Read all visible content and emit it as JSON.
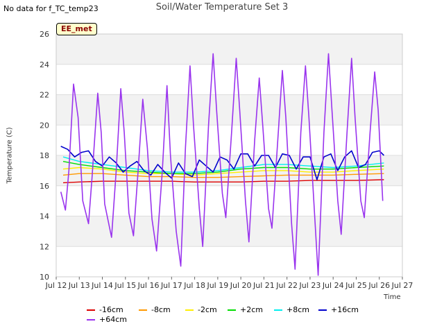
{
  "header": {
    "no_data_text": "No data for f_TC_temp23",
    "badge_text": "EE_met"
  },
  "chart_data": {
    "type": "line",
    "title": "Soil/Water Temperature Set 3",
    "xlabel": "Time",
    "ylabel": "Temperature (C)",
    "xlim": [
      12,
      27
    ],
    "ylim": [
      10,
      26
    ],
    "x_ticks": [
      12,
      13,
      14,
      15,
      16,
      17,
      18,
      19,
      20,
      21,
      22,
      23,
      24,
      25,
      26,
      27
    ],
    "x_tick_labels": [
      "Jul 12",
      "Jul 13",
      "Jul 14",
      "Jul 15",
      "Jul 16",
      "Jul 17",
      "Jul 18",
      "Jul 19",
      "Jul 20",
      "Jul 21",
      "Jul 22",
      "Jul 23",
      "Jul 24",
      "Jul 25",
      "Jul 26",
      "Jul 27"
    ],
    "y_ticks": [
      10,
      12,
      14,
      16,
      18,
      20,
      22,
      24,
      26
    ],
    "grid": true,
    "legend_placement": "bottom",
    "series": [
      {
        "name": "-16cm",
        "color": "#dd0000",
        "x": [
          12.3,
          13,
          14,
          15,
          16,
          17,
          18,
          19,
          20,
          21,
          22,
          23,
          24,
          25,
          26.2
        ],
        "y": [
          16.2,
          16.25,
          16.3,
          16.3,
          16.3,
          16.3,
          16.25,
          16.25,
          16.25,
          16.3,
          16.3,
          16.35,
          16.35,
          16.35,
          16.4
        ]
      },
      {
        "name": "-8cm",
        "color": "#ff9900",
        "x": [
          12.3,
          13,
          14,
          15,
          16,
          17,
          18,
          19,
          20,
          21,
          22,
          23,
          24,
          25,
          26.2
        ],
        "y": [
          16.7,
          16.8,
          16.8,
          16.7,
          16.6,
          16.6,
          16.55,
          16.55,
          16.6,
          16.65,
          16.7,
          16.7,
          16.7,
          16.75,
          16.8
        ]
      },
      {
        "name": "-2cm",
        "color": "#ffee00",
        "x": [
          12.3,
          13,
          14,
          15,
          16,
          17,
          18,
          19,
          20,
          21,
          22,
          23,
          24,
          25,
          26.2
        ],
        "y": [
          17.1,
          17.2,
          17.1,
          16.9,
          16.8,
          16.8,
          16.7,
          16.8,
          16.9,
          17.0,
          17.0,
          16.9,
          16.9,
          17.0,
          17.1
        ]
      },
      {
        "name": "+2cm",
        "color": "#00dd00",
        "x": [
          12.3,
          13,
          14,
          15,
          16,
          17,
          18,
          19,
          20,
          21,
          22,
          23,
          24,
          25,
          26.2
        ],
        "y": [
          17.6,
          17.4,
          17.2,
          17.0,
          16.9,
          16.8,
          16.8,
          16.9,
          17.1,
          17.2,
          17.2,
          17.1,
          17.1,
          17.2,
          17.3
        ]
      },
      {
        "name": "+8cm",
        "color": "#00eeee",
        "x": [
          12.3,
          13,
          14,
          15,
          16,
          17,
          18,
          19,
          20,
          21,
          22,
          23,
          24,
          25,
          26.2
        ],
        "y": [
          17.9,
          17.6,
          17.4,
          17.2,
          17.0,
          16.9,
          16.9,
          17.0,
          17.2,
          17.4,
          17.4,
          17.3,
          17.2,
          17.3,
          17.5
        ]
      },
      {
        "name": "+16cm",
        "color": "#0000cc",
        "x": [
          12.2,
          12.5,
          12.8,
          13.1,
          13.4,
          13.7,
          14.0,
          14.3,
          14.6,
          14.9,
          15.2,
          15.5,
          15.8,
          16.1,
          16.4,
          16.7,
          17.0,
          17.3,
          17.6,
          17.9,
          18.2,
          18.5,
          18.8,
          19.1,
          19.4,
          19.7,
          20.0,
          20.3,
          20.6,
          20.9,
          21.2,
          21.5,
          21.8,
          22.1,
          22.4,
          22.7,
          23.0,
          23.3,
          23.6,
          23.9,
          24.2,
          24.5,
          24.8,
          25.1,
          25.4,
          25.7,
          26.0,
          26.2
        ],
        "y": [
          18.6,
          18.4,
          17.9,
          18.2,
          18.3,
          17.6,
          17.3,
          17.9,
          17.5,
          16.9,
          17.3,
          17.6,
          17.0,
          16.7,
          17.4,
          16.9,
          16.5,
          17.5,
          16.8,
          16.6,
          17.7,
          17.3,
          16.9,
          17.9,
          17.7,
          17.1,
          18.1,
          18.1,
          17.3,
          18.0,
          18.0,
          17.2,
          18.1,
          18.0,
          17.1,
          17.9,
          17.9,
          16.4,
          17.9,
          18.1,
          17.0,
          17.9,
          18.3,
          17.2,
          17.4,
          18.2,
          18.3,
          18.0
        ]
      },
      {
        "name": "+64cm",
        "color": "#9933ee",
        "x": [
          12.2,
          12.4,
          12.55,
          12.75,
          12.95,
          13.15,
          13.4,
          13.55,
          13.8,
          13.95,
          14.1,
          14.4,
          14.6,
          14.8,
          14.95,
          15.15,
          15.35,
          15.55,
          15.75,
          15.95,
          16.15,
          16.35,
          16.6,
          16.8,
          16.95,
          17.2,
          17.4,
          17.6,
          17.8,
          17.95,
          18.2,
          18.35,
          18.6,
          18.8,
          18.95,
          19.2,
          19.35,
          19.6,
          19.8,
          19.95,
          20.2,
          20.35,
          20.6,
          20.8,
          20.95,
          21.2,
          21.35,
          21.6,
          21.8,
          21.95,
          22.2,
          22.35,
          22.6,
          22.8,
          22.95,
          23.2,
          23.35,
          23.6,
          23.8,
          23.95,
          24.2,
          24.35,
          24.6,
          24.8,
          24.95,
          25.2,
          25.35,
          25.6,
          25.8,
          25.95,
          26.15
        ],
        "y": [
          15.6,
          14.4,
          17.0,
          22.7,
          20.5,
          15.0,
          13.5,
          16.5,
          22.1,
          19.5,
          14.8,
          12.6,
          17.0,
          22.4,
          19.5,
          14.2,
          12.7,
          17.0,
          21.7,
          18.5,
          13.8,
          11.7,
          17.0,
          22.6,
          18.0,
          13.0,
          10.7,
          18.5,
          23.9,
          20.0,
          14.5,
          12.0,
          20.0,
          24.7,
          21.0,
          15.5,
          13.9,
          19.5,
          24.4,
          21.0,
          15.0,
          12.3,
          19.0,
          23.1,
          20.0,
          14.5,
          13.2,
          19.0,
          23.6,
          20.5,
          13.5,
          10.5,
          19.5,
          23.9,
          20.5,
          14.0,
          10.1,
          19.5,
          24.7,
          21.0,
          15.0,
          12.8,
          19.5,
          24.4,
          20.5,
          15.0,
          13.9,
          19.5,
          23.5,
          21.0,
          15.0
        ]
      }
    ]
  }
}
